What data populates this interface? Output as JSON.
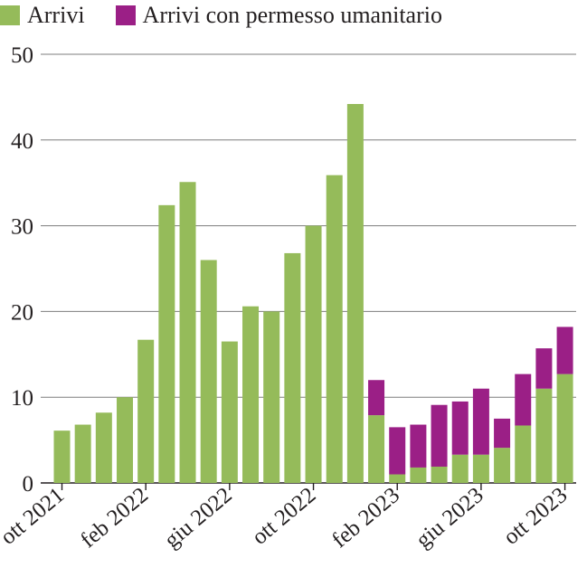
{
  "chart_data": {
    "type": "bar",
    "stacked": true,
    "series": [
      {
        "name": "Arrivi",
        "color": "#95bb5a",
        "values": [
          6.1,
          6.8,
          8.2,
          10.0,
          16.7,
          32.4,
          35.1,
          26.0,
          16.5,
          20.6,
          20.0,
          26.8,
          30.0,
          35.9,
          44.2,
          7.9,
          1.0,
          1.8,
          1.9,
          3.3,
          3.3,
          4.1,
          6.7,
          11.0,
          12.7
        ]
      },
      {
        "name": "Arrivi con permesso umanitario",
        "color": "#9b1f86",
        "values": [
          0,
          0,
          0,
          0,
          0,
          0,
          0,
          0,
          0,
          0,
          0,
          0,
          0,
          0,
          0,
          4.1,
          5.5,
          5.0,
          7.2,
          6.2,
          7.7,
          3.4,
          6.0,
          4.7,
          5.5
        ]
      }
    ],
    "x_tick_labels": [
      "ott 2021",
      "feb 2022",
      "giu 2022",
      "ott 2022",
      "feb 2023",
      "giu 2023",
      "ott 2023"
    ],
    "x_tick_bar_index": [
      0,
      4,
      8,
      12,
      16,
      20,
      24
    ],
    "ylim": [
      0,
      50
    ],
    "y_ticks": [
      0,
      10,
      20,
      30,
      40,
      50
    ],
    "grid": true,
    "legend_position": "top-left"
  }
}
